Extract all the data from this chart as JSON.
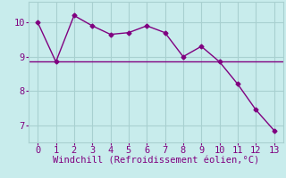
{
  "x": [
    0,
    1,
    2,
    3,
    4,
    5,
    6,
    7,
    8,
    9,
    10,
    11,
    12,
    13
  ],
  "y": [
    10.0,
    8.85,
    10.2,
    9.9,
    9.65,
    9.7,
    9.9,
    9.7,
    9.0,
    9.3,
    8.85,
    8.2,
    7.45,
    6.85
  ],
  "hline_y": 8.85,
  "line_color": "#800080",
  "bg_color": "#c8ecec",
  "grid_color": "#a8d0d0",
  "xlabel": "Windchill (Refroidissement éolien,°C)",
  "xlim": [
    -0.5,
    13.5
  ],
  "ylim": [
    6.5,
    10.6
  ],
  "yticks": [
    7,
    8,
    9,
    10
  ],
  "xticks": [
    0,
    1,
    2,
    3,
    4,
    5,
    6,
    7,
    8,
    9,
    10,
    11,
    12,
    13
  ],
  "marker": "D",
  "markersize": 2.5,
  "linewidth": 1.0,
  "tick_fontsize": 7.5,
  "xlabel_fontsize": 7.5
}
